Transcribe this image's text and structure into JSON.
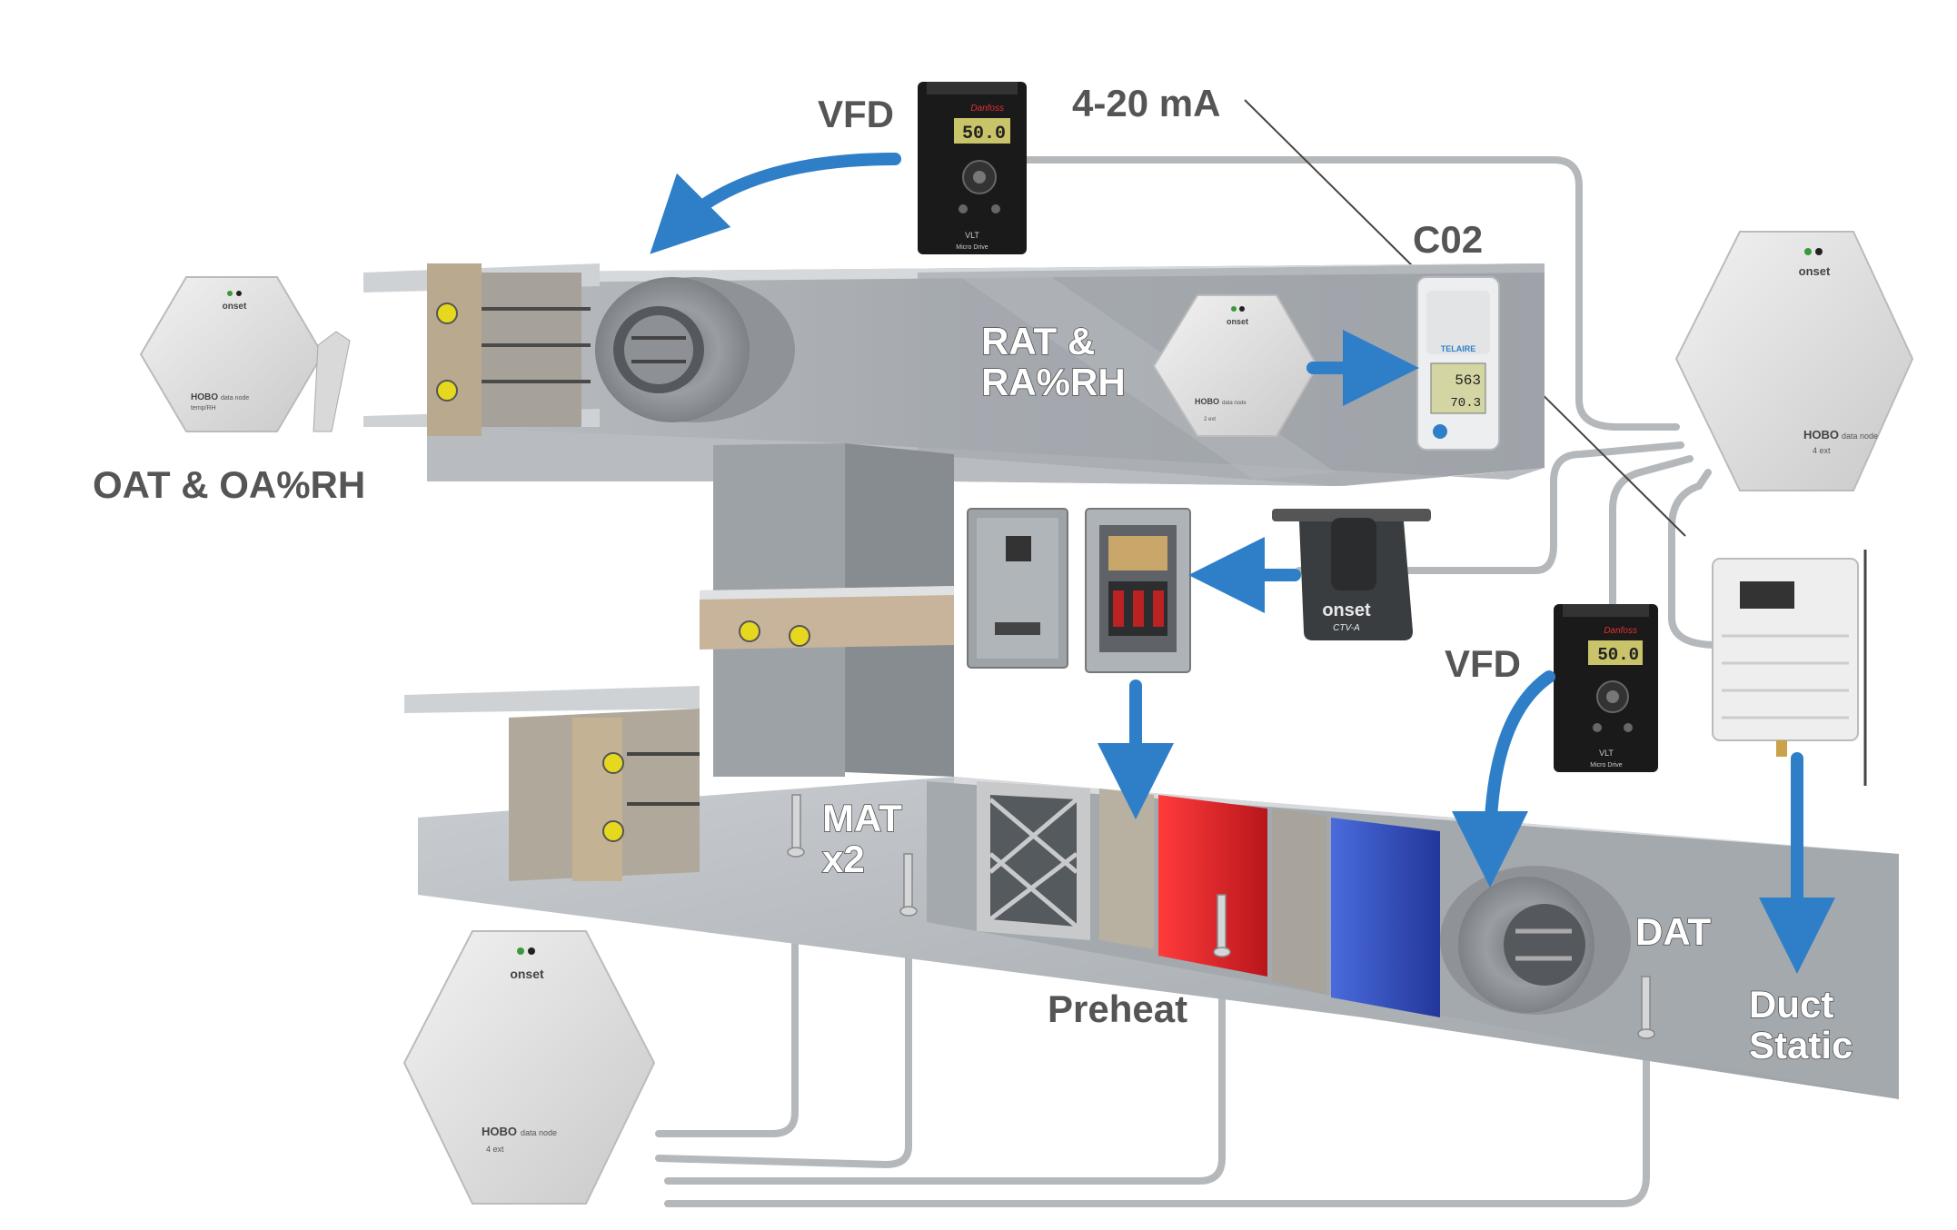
{
  "labels": {
    "vfd_top": "VFD",
    "signal": "4-20 mA",
    "co2": "C02",
    "rat_line1": "RAT &",
    "rat_line2": "RA%RH",
    "oat": "OAT & OA%RH",
    "mat_line1": "MAT",
    "mat_line2": "x2",
    "vfd_bottom": "VFD",
    "preheat": "Preheat",
    "dat": "DAT",
    "duct_line1": "Duct",
    "duct_line2": "Static"
  },
  "devices": {
    "vfd": {
      "display": "50.0",
      "brand": "Danfoss",
      "model": "VLT",
      "sub": "Micro Drive"
    },
    "hobo": {
      "brand": "onset",
      "name": "HOBO",
      "sub_temp": "data node",
      "sub_4ext": "4 ext",
      "sub_2ext": "2 ext",
      "sub_temprh": "temp/RH"
    },
    "co2_sensor": {
      "brand": "TELAIRE",
      "reading1": "563",
      "reading2": "70.3"
    },
    "ct_sensor": {
      "brand": "onset",
      "model": "CTV-A"
    }
  },
  "colors": {
    "arrow": "#2f7fc8",
    "duct": "#a9aeb3",
    "heating_coil": "#e8252b",
    "cooling_coil": "#2f4fc8",
    "cable": "#b5b8bb",
    "label_dark": "#555555"
  }
}
